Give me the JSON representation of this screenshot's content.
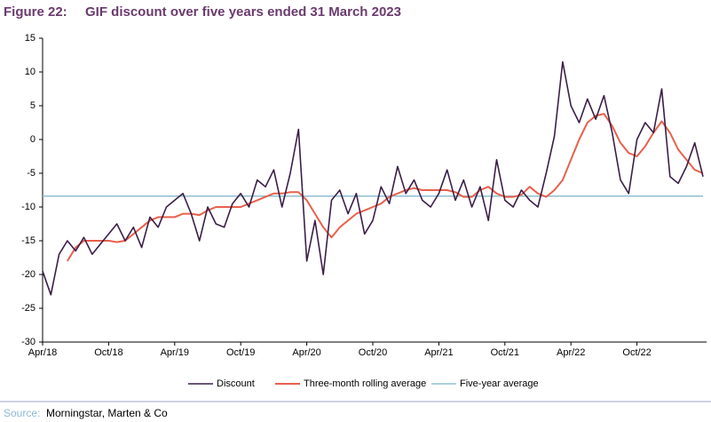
{
  "chart_data": {
    "type": "line",
    "figure_label": "Figure 22:",
    "title": "GIF discount over five years ended 31 March 2023",
    "source_label": "Source:",
    "source": "Morningstar, Marten & Co",
    "categories": [
      "Apr/18",
      null,
      null,
      null,
      null,
      null,
      null,
      null,
      "Oct/18",
      null,
      null,
      null,
      null,
      null,
      null,
      null,
      "Apr/19",
      null,
      null,
      null,
      null,
      null,
      null,
      null,
      "Oct/19",
      null,
      null,
      null,
      null,
      null,
      null,
      null,
      "Apr/20",
      null,
      null,
      null,
      null,
      null,
      null,
      null,
      "Oct/20",
      null,
      null,
      null,
      null,
      null,
      null,
      null,
      "Apr/21",
      null,
      null,
      null,
      null,
      null,
      null,
      null,
      "Oct/21",
      null,
      null,
      null,
      null,
      null,
      null,
      null,
      "Apr/22",
      null,
      null,
      null,
      null,
      null,
      null,
      null,
      "Oct/22",
      null,
      null,
      null,
      null,
      null,
      null,
      null,
      null
    ],
    "series": [
      {
        "name": "Discount",
        "color": "#3b1f48",
        "width": 1.6,
        "values": [
          -19.5,
          -23,
          -17,
          -15,
          -16.5,
          -14.5,
          -17,
          -15.5,
          -14,
          -12.5,
          -15,
          -13,
          -16,
          -11.5,
          -13,
          -10,
          -9,
          -8,
          -11,
          -15,
          -10,
          -12.5,
          -13,
          -9.5,
          -8,
          -10,
          -6,
          -7,
          -4.5,
          -10,
          -5,
          1.5,
          -18,
          -12,
          -20,
          -9,
          -7.5,
          -11,
          -8,
          -14,
          -12,
          -7,
          -9.5,
          -4,
          -8,
          -6,
          -9,
          -10,
          -8,
          -4.5,
          -9,
          -6,
          -10,
          -7,
          -12,
          -3,
          -9,
          -10,
          -7.5,
          -9,
          -10,
          -5,
          0.5,
          11.5,
          5,
          2.5,
          6,
          3,
          6.5,
          1,
          -6,
          -8,
          0,
          2.5,
          1,
          7.5,
          -5.5,
          -6.5,
          -4,
          -0.5,
          -5.5
        ]
      },
      {
        "name": "Three-month rolling average",
        "color": "#e8604c",
        "width": 2,
        "values": [
          null,
          null,
          null,
          -18,
          -16,
          -15,
          -15,
          -15,
          -15,
          -15.2,
          -15,
          -14,
          -13,
          -12,
          -11.5,
          -11.5,
          -11.5,
          -11,
          -11,
          -11.2,
          -10.5,
          -10,
          -10,
          -10,
          -10,
          -9.5,
          -9,
          -8.5,
          -8,
          -8,
          -7.8,
          -7.8,
          -9,
          -11,
          -13,
          -14.5,
          -13,
          -12,
          -11,
          -10.5,
          -10,
          -9.5,
          -8.5,
          -8,
          -7.5,
          -7.2,
          -7.5,
          -7.5,
          -7.5,
          -7.5,
          -7.8,
          -8.5,
          -8.5,
          -7.5,
          -7,
          -8,
          -8.5,
          -8.5,
          -8.2,
          -7,
          -8,
          -8.5,
          -7.5,
          -6,
          -3,
          0,
          2.5,
          3.5,
          3.8,
          2,
          -0.5,
          -2,
          -2.5,
          -1,
          1,
          2.7,
          1,
          -1.5,
          -3,
          -4.5,
          -5
        ]
      },
      {
        "name": "Five-year average",
        "color": "#8fbfcf",
        "width": 1.5,
        "values": [
          -8.4,
          -8.4,
          -8.4,
          -8.4,
          -8.4,
          -8.4,
          -8.4,
          -8.4,
          -8.4,
          -8.4,
          -8.4,
          -8.4,
          -8.4,
          -8.4,
          -8.4,
          -8.4,
          -8.4,
          -8.4,
          -8.4,
          -8.4,
          -8.4,
          -8.4,
          -8.4,
          -8.4,
          -8.4,
          -8.4,
          -8.4,
          -8.4,
          -8.4,
          -8.4,
          -8.4,
          -8.4,
          -8.4,
          -8.4,
          -8.4,
          -8.4,
          -8.4,
          -8.4,
          -8.4,
          -8.4,
          -8.4,
          -8.4,
          -8.4,
          -8.4,
          -8.4,
          -8.4,
          -8.4,
          -8.4,
          -8.4,
          -8.4,
          -8.4,
          -8.4,
          -8.4,
          -8.4,
          -8.4,
          -8.4,
          -8.4,
          -8.4,
          -8.4,
          -8.4,
          -8.4,
          -8.4,
          -8.4,
          -8.4,
          -8.4,
          -8.4,
          -8.4,
          -8.4,
          -8.4,
          -8.4,
          -8.4,
          -8.4,
          -8.4,
          -8.4,
          -8.4,
          -8.4,
          -8.4,
          -8.4,
          -8.4,
          -8.4,
          -8.4
        ]
      }
    ],
    "ylim": [
      -30,
      15
    ],
    "yticks": [
      -30,
      -25,
      -20,
      -15,
      -10,
      -5,
      0,
      5,
      10,
      15
    ],
    "grid": false
  }
}
